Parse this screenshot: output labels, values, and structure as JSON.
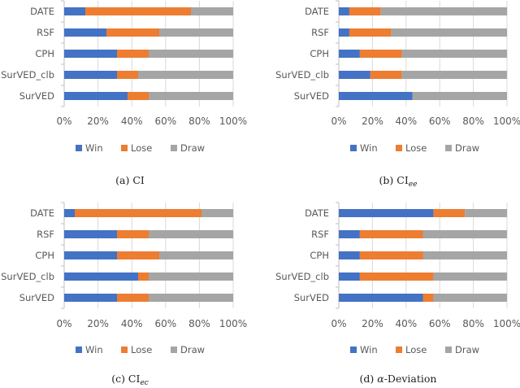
{
  "chart_data": [
    {
      "type": "bar",
      "orientation": "horizontal",
      "stacked": "100%",
      "caption": {
        "label": "(a)",
        "main": "CI",
        "sub": "",
        "italic_main": false,
        "suffix": ""
      },
      "categories": [
        "DATE",
        "RSF",
        "CPH",
        "SurVED_clb",
        "SurVED"
      ],
      "series": [
        {
          "name": "Win",
          "color": "#4472C4",
          "values": [
            12.5,
            25,
            31.25,
            31.25,
            37.5
          ]
        },
        {
          "name": "Lose",
          "color": "#ED7D31",
          "values": [
            62.5,
            31.25,
            18.75,
            12.5,
            12.5
          ]
        },
        {
          "name": "Draw",
          "color": "#A5A5A5",
          "values": [
            25,
            43.75,
            50,
            56.25,
            50
          ]
        }
      ],
      "xlim": [
        0,
        100
      ],
      "xticks": [
        "0%",
        "20%",
        "40%",
        "60%",
        "80%",
        "100%"
      ],
      "grid": true,
      "legend": "bottom"
    },
    {
      "type": "bar",
      "orientation": "horizontal",
      "stacked": "100%",
      "caption": {
        "label": "(b)",
        "main": "CI",
        "sub": "ee",
        "italic_main": false,
        "suffix": ""
      },
      "categories": [
        "DATE",
        "RSF",
        "CPH",
        "SurVED_clb",
        "SurVED"
      ],
      "series": [
        {
          "name": "Win",
          "color": "#4472C4",
          "values": [
            6.25,
            6.25,
            12.5,
            18.75,
            43.75
          ]
        },
        {
          "name": "Lose",
          "color": "#ED7D31",
          "values": [
            18.75,
            25,
            25,
            18.75,
            0
          ]
        },
        {
          "name": "Draw",
          "color": "#A5A5A5",
          "values": [
            75,
            68.75,
            62.5,
            62.5,
            56.25
          ]
        }
      ],
      "xlim": [
        0,
        100
      ],
      "xticks": [
        "0%",
        "20%",
        "40%",
        "60%",
        "80%",
        "100%"
      ],
      "grid": true,
      "legend": "bottom"
    },
    {
      "type": "bar",
      "orientation": "horizontal",
      "stacked": "100%",
      "caption": {
        "label": "(c)",
        "main": "CI",
        "sub": "ec",
        "italic_main": false,
        "suffix": ""
      },
      "categories": [
        "DATE",
        "RSF",
        "CPH",
        "SurVED_clb",
        "SurVED"
      ],
      "series": [
        {
          "name": "Win",
          "color": "#4472C4",
          "values": [
            6.25,
            31.25,
            31.25,
            43.75,
            31.25
          ]
        },
        {
          "name": "Lose",
          "color": "#ED7D31",
          "values": [
            75,
            18.75,
            25,
            6.25,
            18.75
          ]
        },
        {
          "name": "Draw",
          "color": "#A5A5A5",
          "values": [
            18.75,
            50,
            43.75,
            50,
            50
          ]
        }
      ],
      "xlim": [
        0,
        100
      ],
      "xticks": [
        "0%",
        "20%",
        "40%",
        "60%",
        "80%",
        "100%"
      ],
      "grid": true,
      "legend": "bottom"
    },
    {
      "type": "bar",
      "orientation": "horizontal",
      "stacked": "100%",
      "caption": {
        "label": "(d)",
        "main": "α",
        "sub": "",
        "italic_main": true,
        "suffix": "-Deviation"
      },
      "categories": [
        "DATE",
        "RSF",
        "CPH",
        "SurVED_clb",
        "SurVED"
      ],
      "series": [
        {
          "name": "Win",
          "color": "#4472C4",
          "values": [
            56.25,
            12.5,
            12.5,
            12.5,
            50
          ]
        },
        {
          "name": "Lose",
          "color": "#ED7D31",
          "values": [
            18.75,
            37.5,
            37.5,
            43.75,
            6.25
          ]
        },
        {
          "name": "Draw",
          "color": "#A5A5A5",
          "values": [
            25,
            50,
            50,
            43.75,
            43.75
          ]
        }
      ],
      "xlim": [
        0,
        100
      ],
      "xticks": [
        "0%",
        "20%",
        "40%",
        "60%",
        "80%",
        "100%"
      ],
      "grid": true,
      "legend": "bottom"
    }
  ]
}
